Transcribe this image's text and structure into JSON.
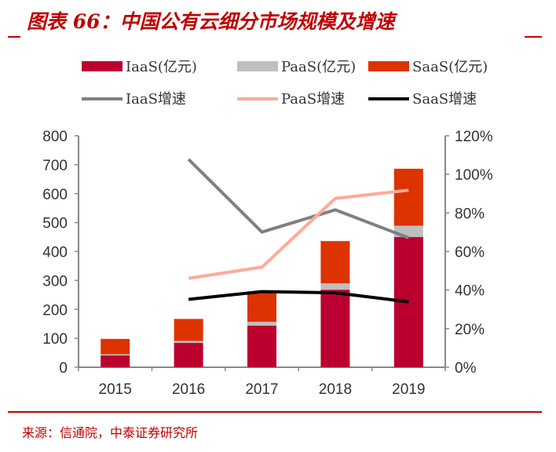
{
  "title": "图表 66：中国公有云细分市场规模及增速",
  "source": "来源：信通院，中泰证券研究所",
  "chart_data": {
    "type": "bar+line",
    "categories": [
      "2015",
      "2016",
      "2017",
      "2018",
      "2019"
    ],
    "left_axis": {
      "ylim": [
        0,
        800
      ],
      "ticks": [
        "0",
        "100",
        "200",
        "300",
        "400",
        "500",
        "600",
        "700",
        "800"
      ]
    },
    "right_axis": {
      "ylim": [
        0,
        120
      ],
      "ticks": [
        "0%",
        "20%",
        "40%",
        "60%",
        "80%",
        "100%",
        "120%"
      ]
    },
    "bar_series": [
      {
        "name": "IaaS(亿元)",
        "color": "#bb0030",
        "values": [
          41,
          84,
          144,
          268,
          450
        ]
      },
      {
        "name": "PaaS(亿元)",
        "color": "#bfbfbf",
        "values": [
          4,
          7,
          13,
          22,
          39
        ]
      },
      {
        "name": "SaaS(亿元)",
        "color": "#dd3300",
        "values": [
          53,
          76,
          105,
          146,
          197
        ]
      }
    ],
    "line_series": [
      {
        "name": "IaaS增速",
        "color": "#808080",
        "values": [
          null,
          107.8,
          70.1,
          81.6,
          67.1
        ]
      },
      {
        "name": "PaaS增速",
        "color": "#ffaa99",
        "values": [
          null,
          46.1,
          51.9,
          87.5,
          91.8
        ]
      },
      {
        "name": "SaaS增速",
        "color": "#000000",
        "values": [
          null,
          35.2,
          39.2,
          38.6,
          33.9
        ]
      }
    ],
    "legend": "top",
    "grid": false
  }
}
